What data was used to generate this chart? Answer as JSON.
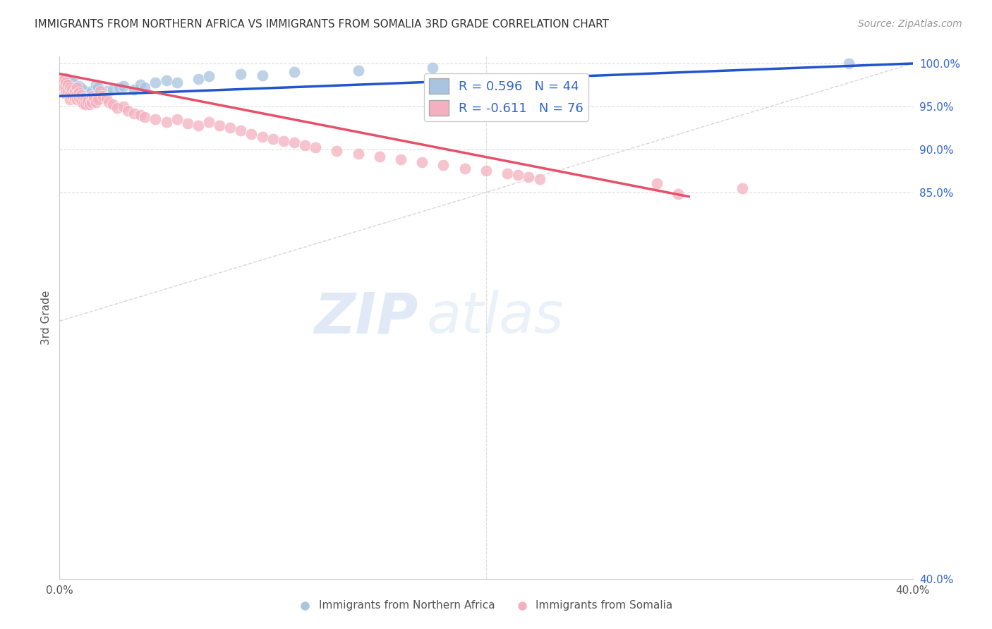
{
  "title": "IMMIGRANTS FROM NORTHERN AFRICA VS IMMIGRANTS FROM SOMALIA 3RD GRADE CORRELATION CHART",
  "source": "Source: ZipAtlas.com",
  "ylabel": "3rd Grade",
  "x_min": 0.0,
  "x_max": 0.4,
  "y_min": 0.4,
  "y_max": 1.008,
  "blue_color": "#a8c4e0",
  "pink_color": "#f4b0be",
  "blue_line_color": "#2255cc",
  "pink_line_color": "#e8506a",
  "diag_line_color": "#cccccc",
  "R_blue": 0.596,
  "N_blue": 44,
  "R_pink": -0.611,
  "N_pink": 76,
  "legend_text_color": "#3366cc",
  "watermark_zip": "ZIP",
  "watermark_atlas": "atlas",
  "blue_scatter_x": [
    0.001,
    0.002,
    0.003,
    0.003,
    0.004,
    0.004,
    0.005,
    0.005,
    0.006,
    0.006,
    0.007,
    0.007,
    0.008,
    0.008,
    0.009,
    0.01,
    0.01,
    0.011,
    0.012,
    0.013,
    0.014,
    0.015,
    0.016,
    0.017,
    0.018,
    0.02,
    0.022,
    0.025,
    0.028,
    0.03,
    0.035,
    0.038,
    0.04,
    0.045,
    0.05,
    0.055,
    0.065,
    0.07,
    0.085,
    0.095,
    0.11,
    0.14,
    0.175,
    0.37
  ],
  "blue_scatter_y": [
    0.98,
    0.976,
    0.983,
    0.978,
    0.975,
    0.972,
    0.974,
    0.97,
    0.977,
    0.98,
    0.968,
    0.972,
    0.969,
    0.966,
    0.974,
    0.971,
    0.967,
    0.969,
    0.963,
    0.96,
    0.965,
    0.968,
    0.962,
    0.975,
    0.972,
    0.965,
    0.968,
    0.97,
    0.972,
    0.974,
    0.97,
    0.975,
    0.972,
    0.978,
    0.98,
    0.978,
    0.982,
    0.985,
    0.988,
    0.986,
    0.99,
    0.992,
    0.995,
    1.0
  ],
  "pink_scatter_x": [
    0.001,
    0.001,
    0.002,
    0.002,
    0.003,
    0.003,
    0.003,
    0.004,
    0.004,
    0.005,
    0.005,
    0.005,
    0.006,
    0.006,
    0.007,
    0.007,
    0.008,
    0.008,
    0.008,
    0.009,
    0.009,
    0.01,
    0.01,
    0.011,
    0.011,
    0.012,
    0.012,
    0.013,
    0.014,
    0.015,
    0.015,
    0.016,
    0.017,
    0.018,
    0.019,
    0.02,
    0.022,
    0.023,
    0.025,
    0.027,
    0.03,
    0.032,
    0.035,
    0.038,
    0.04,
    0.045,
    0.05,
    0.055,
    0.06,
    0.065,
    0.07,
    0.075,
    0.08,
    0.085,
    0.09,
    0.095,
    0.1,
    0.105,
    0.11,
    0.115,
    0.12,
    0.13,
    0.14,
    0.15,
    0.16,
    0.17,
    0.18,
    0.19,
    0.2,
    0.21,
    0.215,
    0.22,
    0.225,
    0.28,
    0.32,
    0.29
  ],
  "pink_scatter_y": [
    0.983,
    0.975,
    0.98,
    0.972,
    0.978,
    0.97,
    0.965,
    0.975,
    0.968,
    0.972,
    0.965,
    0.958,
    0.97,
    0.963,
    0.968,
    0.96,
    0.972,
    0.965,
    0.958,
    0.966,
    0.96,
    0.963,
    0.958,
    0.96,
    0.953,
    0.958,
    0.952,
    0.956,
    0.952,
    0.962,
    0.955,
    0.96,
    0.955,
    0.958,
    0.968,
    0.962,
    0.96,
    0.955,
    0.952,
    0.948,
    0.95,
    0.945,
    0.942,
    0.94,
    0.938,
    0.935,
    0.932,
    0.935,
    0.93,
    0.928,
    0.932,
    0.928,
    0.925,
    0.922,
    0.918,
    0.915,
    0.912,
    0.91,
    0.908,
    0.905,
    0.902,
    0.898,
    0.895,
    0.892,
    0.888,
    0.885,
    0.882,
    0.878,
    0.875,
    0.872,
    0.87,
    0.868,
    0.865,
    0.86,
    0.855,
    0.848
  ],
  "blue_line_x0": 0.0,
  "blue_line_y0": 0.962,
  "blue_line_x1": 0.4,
  "blue_line_y1": 1.0,
  "pink_line_x0": 0.0,
  "pink_line_y0": 0.988,
  "pink_line_x1": 0.295,
  "pink_line_y1": 0.845
}
